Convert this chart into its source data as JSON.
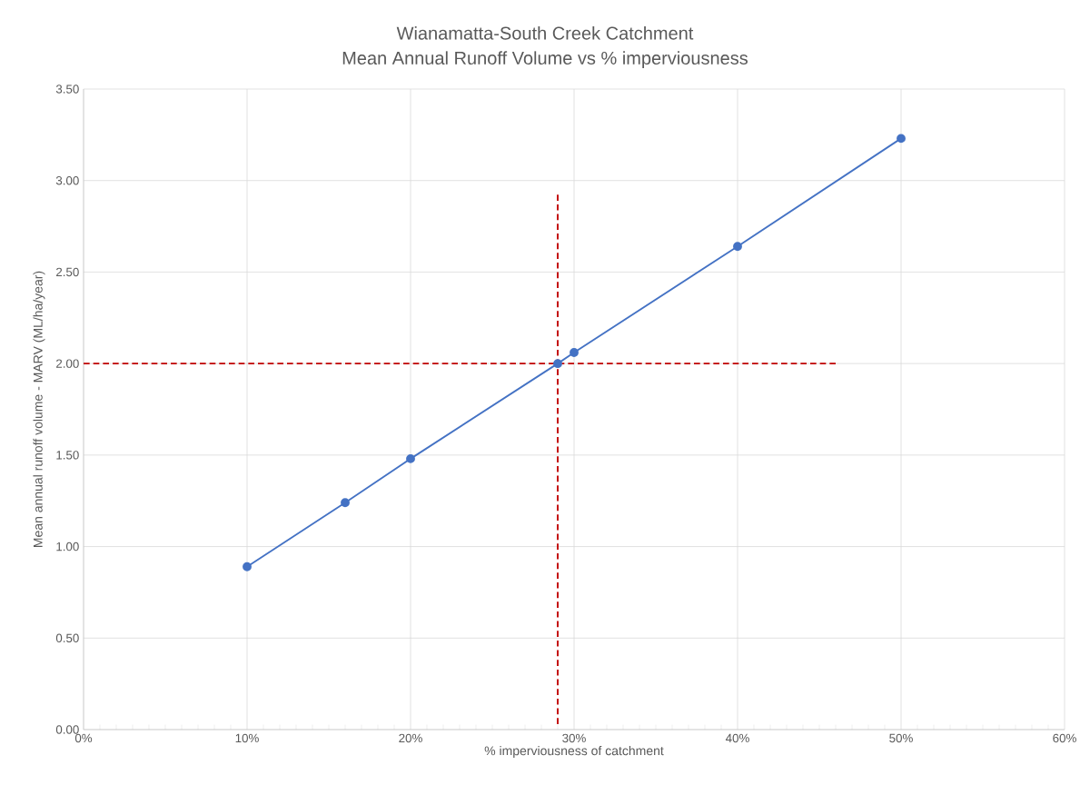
{
  "chart_data": {
    "type": "line",
    "title": "Wianamatta-South Creek Catchment",
    "subtitle": "Mean Annual Runoff Volume vs % imperviousness",
    "xlabel": "% imperviousness of catchment",
    "ylabel": "Mean annual runoff volume - MARV (ML/ha/year)",
    "series": [
      {
        "x": [
          10,
          16,
          20,
          29,
          30,
          40,
          50
        ],
        "values": [
          0.89,
          1.24,
          1.48,
          2.0,
          2.06,
          2.64,
          3.23
        ],
        "color": "#4472c4",
        "marker": "circle",
        "line_style": "solid"
      },
      {
        "type": "line",
        "x": [
          0,
          46
        ],
        "values": [
          2.0,
          2.0
        ],
        "color": "#c00000",
        "marker": "none",
        "line_style": "dashed"
      },
      {
        "type": "line",
        "x": [
          29,
          29
        ],
        "values": [
          0.03,
          2.93
        ],
        "color": "#c00000",
        "marker": "none",
        "line_style": "dashed"
      }
    ],
    "xlim": [
      0,
      60
    ],
    "ylim": [
      0,
      3.5
    ],
    "xticks": [
      {
        "value": 0,
        "label": "0%"
      },
      {
        "value": 10,
        "label": "10%"
      },
      {
        "value": 20,
        "label": "20%"
      },
      {
        "value": 30,
        "label": "30%"
      },
      {
        "value": 40,
        "label": "40%"
      },
      {
        "value": 50,
        "label": "50%"
      },
      {
        "value": 60,
        "label": "60%"
      }
    ],
    "yticks": [
      {
        "value": 0,
        "label": "0.00"
      },
      {
        "value": 0.5,
        "label": "0.50"
      },
      {
        "value": 1,
        "label": "1.00"
      },
      {
        "value": 1.5,
        "label": "1.50"
      },
      {
        "value": 2,
        "label": "2.00"
      },
      {
        "value": 2.5,
        "label": "2.50"
      },
      {
        "value": 3,
        "label": "3.00"
      },
      {
        "value": 3.5,
        "label": "3.50"
      }
    ],
    "grid": true
  }
}
